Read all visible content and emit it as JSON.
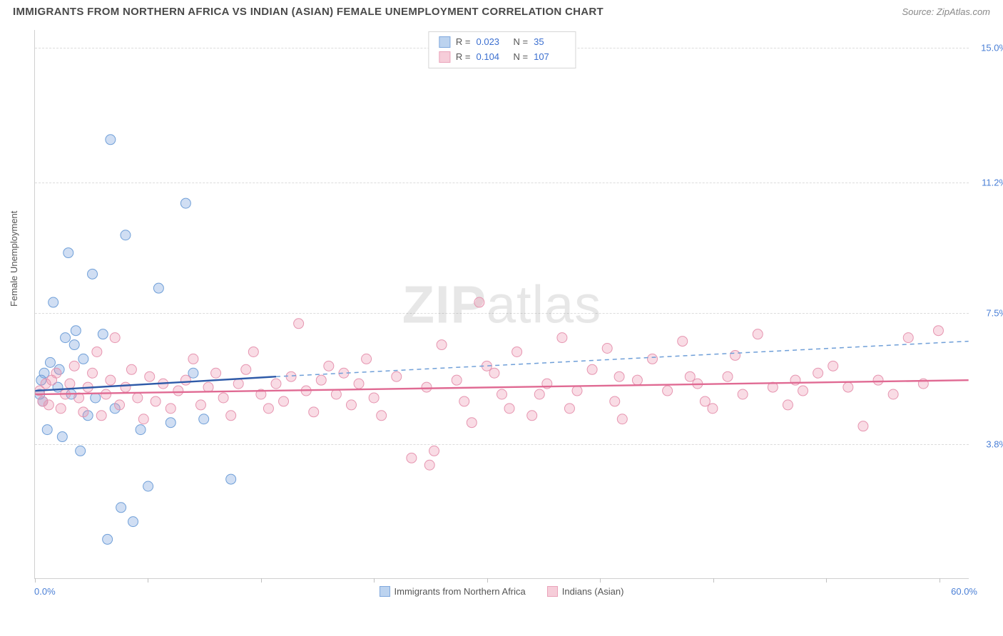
{
  "title": "IMMIGRANTS FROM NORTHERN AFRICA VS INDIAN (ASIAN) FEMALE UNEMPLOYMENT CORRELATION CHART",
  "source": "Source: ZipAtlas.com",
  "watermark": {
    "bold": "ZIP",
    "light": "atlas"
  },
  "y_axis": {
    "label": "Female Unemployment",
    "ticks": [
      {
        "value": 3.8,
        "label": "3.8%"
      },
      {
        "value": 7.5,
        "label": "7.5%"
      },
      {
        "value": 11.2,
        "label": "11.2%"
      },
      {
        "value": 15.0,
        "label": "15.0%"
      }
    ],
    "min": 0.0,
    "max": 15.5
  },
  "x_axis": {
    "min": 0.0,
    "max": 62.0,
    "left_label": "0.0%",
    "right_label": "60.0%",
    "tick_positions": [
      0,
      7.5,
      15,
      22.5,
      30,
      37.5,
      45,
      52.5,
      60
    ]
  },
  "series": [
    {
      "id": "northern_africa",
      "label": "Immigrants from Northern Africa",
      "color_fill": "rgba(120,160,220,0.35)",
      "color_stroke": "#6f9fd8",
      "legend_fill": "#bcd3ef",
      "legend_stroke": "#7fa8dd",
      "R": "0.023",
      "N": "35",
      "trend": {
        "x1": 0,
        "y1": 5.3,
        "x2_solid": 16,
        "y2_solid": 5.7,
        "x2_dash": 62,
        "y2_dash": 6.7,
        "solid_color": "#2e5aa8",
        "dash_color": "#6f9fd8"
      },
      "points": [
        [
          0.3,
          5.2
        ],
        [
          0.4,
          5.6
        ],
        [
          0.5,
          5.0
        ],
        [
          0.6,
          5.8
        ],
        [
          0.8,
          4.2
        ],
        [
          1.0,
          6.1
        ],
        [
          1.2,
          7.8
        ],
        [
          1.5,
          5.4
        ],
        [
          1.8,
          4.0
        ],
        [
          2.0,
          6.8
        ],
        [
          2.2,
          9.2
        ],
        [
          2.4,
          5.2
        ],
        [
          2.7,
          7.0
        ],
        [
          3.0,
          3.6
        ],
        [
          3.2,
          6.2
        ],
        [
          3.5,
          4.6
        ],
        [
          3.8,
          8.6
        ],
        [
          4.0,
          5.1
        ],
        [
          4.5,
          6.9
        ],
        [
          5.0,
          12.4
        ],
        [
          5.3,
          4.8
        ],
        [
          5.7,
          2.0
        ],
        [
          6.0,
          9.7
        ],
        [
          6.5,
          1.6
        ],
        [
          7.0,
          4.2
        ],
        [
          7.5,
          2.6
        ],
        [
          8.2,
          8.2
        ],
        [
          9.0,
          4.4
        ],
        [
          10.0,
          10.6
        ],
        [
          10.5,
          5.8
        ],
        [
          11.2,
          4.5
        ],
        [
          13.0,
          2.8
        ],
        [
          4.8,
          1.1
        ],
        [
          2.6,
          6.6
        ],
        [
          1.6,
          5.9
        ]
      ]
    },
    {
      "id": "indians",
      "label": "Indians (Asian)",
      "color_fill": "rgba(235,140,170,0.30)",
      "color_stroke": "#e695b0",
      "legend_fill": "#f6cdd9",
      "legend_stroke": "#eaa3ba",
      "R": "0.104",
      "N": "107",
      "trend": {
        "x1": 0,
        "y1": 5.2,
        "x2_solid": 62,
        "y2_solid": 5.6,
        "x2_dash": 62,
        "y2_dash": 5.6,
        "solid_color": "#e06a93",
        "dash_color": "#e695b0"
      },
      "points": [
        [
          0.3,
          5.3
        ],
        [
          0.5,
          5.0
        ],
        [
          0.7,
          5.5
        ],
        [
          0.9,
          4.9
        ],
        [
          1.1,
          5.6
        ],
        [
          1.4,
          5.8
        ],
        [
          1.7,
          4.8
        ],
        [
          2.0,
          5.2
        ],
        [
          2.3,
          5.5
        ],
        [
          2.6,
          6.0
        ],
        [
          2.9,
          5.1
        ],
        [
          3.2,
          4.7
        ],
        [
          3.5,
          5.4
        ],
        [
          3.8,
          5.8
        ],
        [
          4.1,
          6.4
        ],
        [
          4.4,
          4.6
        ],
        [
          4.7,
          5.2
        ],
        [
          5.0,
          5.6
        ],
        [
          5.3,
          6.8
        ],
        [
          5.6,
          4.9
        ],
        [
          6.0,
          5.4
        ],
        [
          6.4,
          5.9
        ],
        [
          6.8,
          5.1
        ],
        [
          7.2,
          4.5
        ],
        [
          7.6,
          5.7
        ],
        [
          8.0,
          5.0
        ],
        [
          8.5,
          5.5
        ],
        [
          9.0,
          4.8
        ],
        [
          9.5,
          5.3
        ],
        [
          10.0,
          5.6
        ],
        [
          10.5,
          6.2
        ],
        [
          11.0,
          4.9
        ],
        [
          11.5,
          5.4
        ],
        [
          12.0,
          5.8
        ],
        [
          12.5,
          5.1
        ],
        [
          13.0,
          4.6
        ],
        [
          13.5,
          5.5
        ],
        [
          14.0,
          5.9
        ],
        [
          14.5,
          6.4
        ],
        [
          15.0,
          5.2
        ],
        [
          15.5,
          4.8
        ],
        [
          16.0,
          5.5
        ],
        [
          16.5,
          5.0
        ],
        [
          17.0,
          5.7
        ],
        [
          17.5,
          7.2
        ],
        [
          18.0,
          5.3
        ],
        [
          18.5,
          4.7
        ],
        [
          19.0,
          5.6
        ],
        [
          19.5,
          6.0
        ],
        [
          20.0,
          5.2
        ],
        [
          20.5,
          5.8
        ],
        [
          21.0,
          4.9
        ],
        [
          21.5,
          5.5
        ],
        [
          22.0,
          6.2
        ],
        [
          22.5,
          5.1
        ],
        [
          23.0,
          4.6
        ],
        [
          24.0,
          5.7
        ],
        [
          25.0,
          3.4
        ],
        [
          26.0,
          5.4
        ],
        [
          26.5,
          3.6
        ],
        [
          27.0,
          6.6
        ],
        [
          28.0,
          5.6
        ],
        [
          29.0,
          4.4
        ],
        [
          29.5,
          7.8
        ],
        [
          30.0,
          6.0
        ],
        [
          30.5,
          5.8
        ],
        [
          31.0,
          5.2
        ],
        [
          32.0,
          6.4
        ],
        [
          33.0,
          4.6
        ],
        [
          34.0,
          5.5
        ],
        [
          35.0,
          6.8
        ],
        [
          35.5,
          4.8
        ],
        [
          36.0,
          5.3
        ],
        [
          37.0,
          5.9
        ],
        [
          38.0,
          6.5
        ],
        [
          38.5,
          5.0
        ],
        [
          39.0,
          4.5
        ],
        [
          40.0,
          5.6
        ],
        [
          41.0,
          6.2
        ],
        [
          42.0,
          5.3
        ],
        [
          43.0,
          6.7
        ],
        [
          44.0,
          5.5
        ],
        [
          44.5,
          5.0
        ],
        [
          45.0,
          4.8
        ],
        [
          46.0,
          5.7
        ],
        [
          47.0,
          5.2
        ],
        [
          48.0,
          6.9
        ],
        [
          49.0,
          5.4
        ],
        [
          50.0,
          4.9
        ],
        [
          50.5,
          5.6
        ],
        [
          51.0,
          5.3
        ],
        [
          52.0,
          5.8
        ],
        [
          53.0,
          6.0
        ],
        [
          54.0,
          5.4
        ],
        [
          55.0,
          4.3
        ],
        [
          56.0,
          5.6
        ],
        [
          57.0,
          5.2
        ],
        [
          58.0,
          6.8
        ],
        [
          59.0,
          5.5
        ],
        [
          60.0,
          7.0
        ],
        [
          26.2,
          3.2
        ],
        [
          28.5,
          5.0
        ],
        [
          31.5,
          4.8
        ],
        [
          43.5,
          5.7
        ],
        [
          46.5,
          6.3
        ],
        [
          38.8,
          5.7
        ],
        [
          33.5,
          5.2
        ]
      ]
    }
  ],
  "top_legend_labels": {
    "R": "R =",
    "N": "N ="
  },
  "marker_radius": 7,
  "line_width_solid": 2.4,
  "line_width_dash": 1.5,
  "dash_pattern": "6,5"
}
